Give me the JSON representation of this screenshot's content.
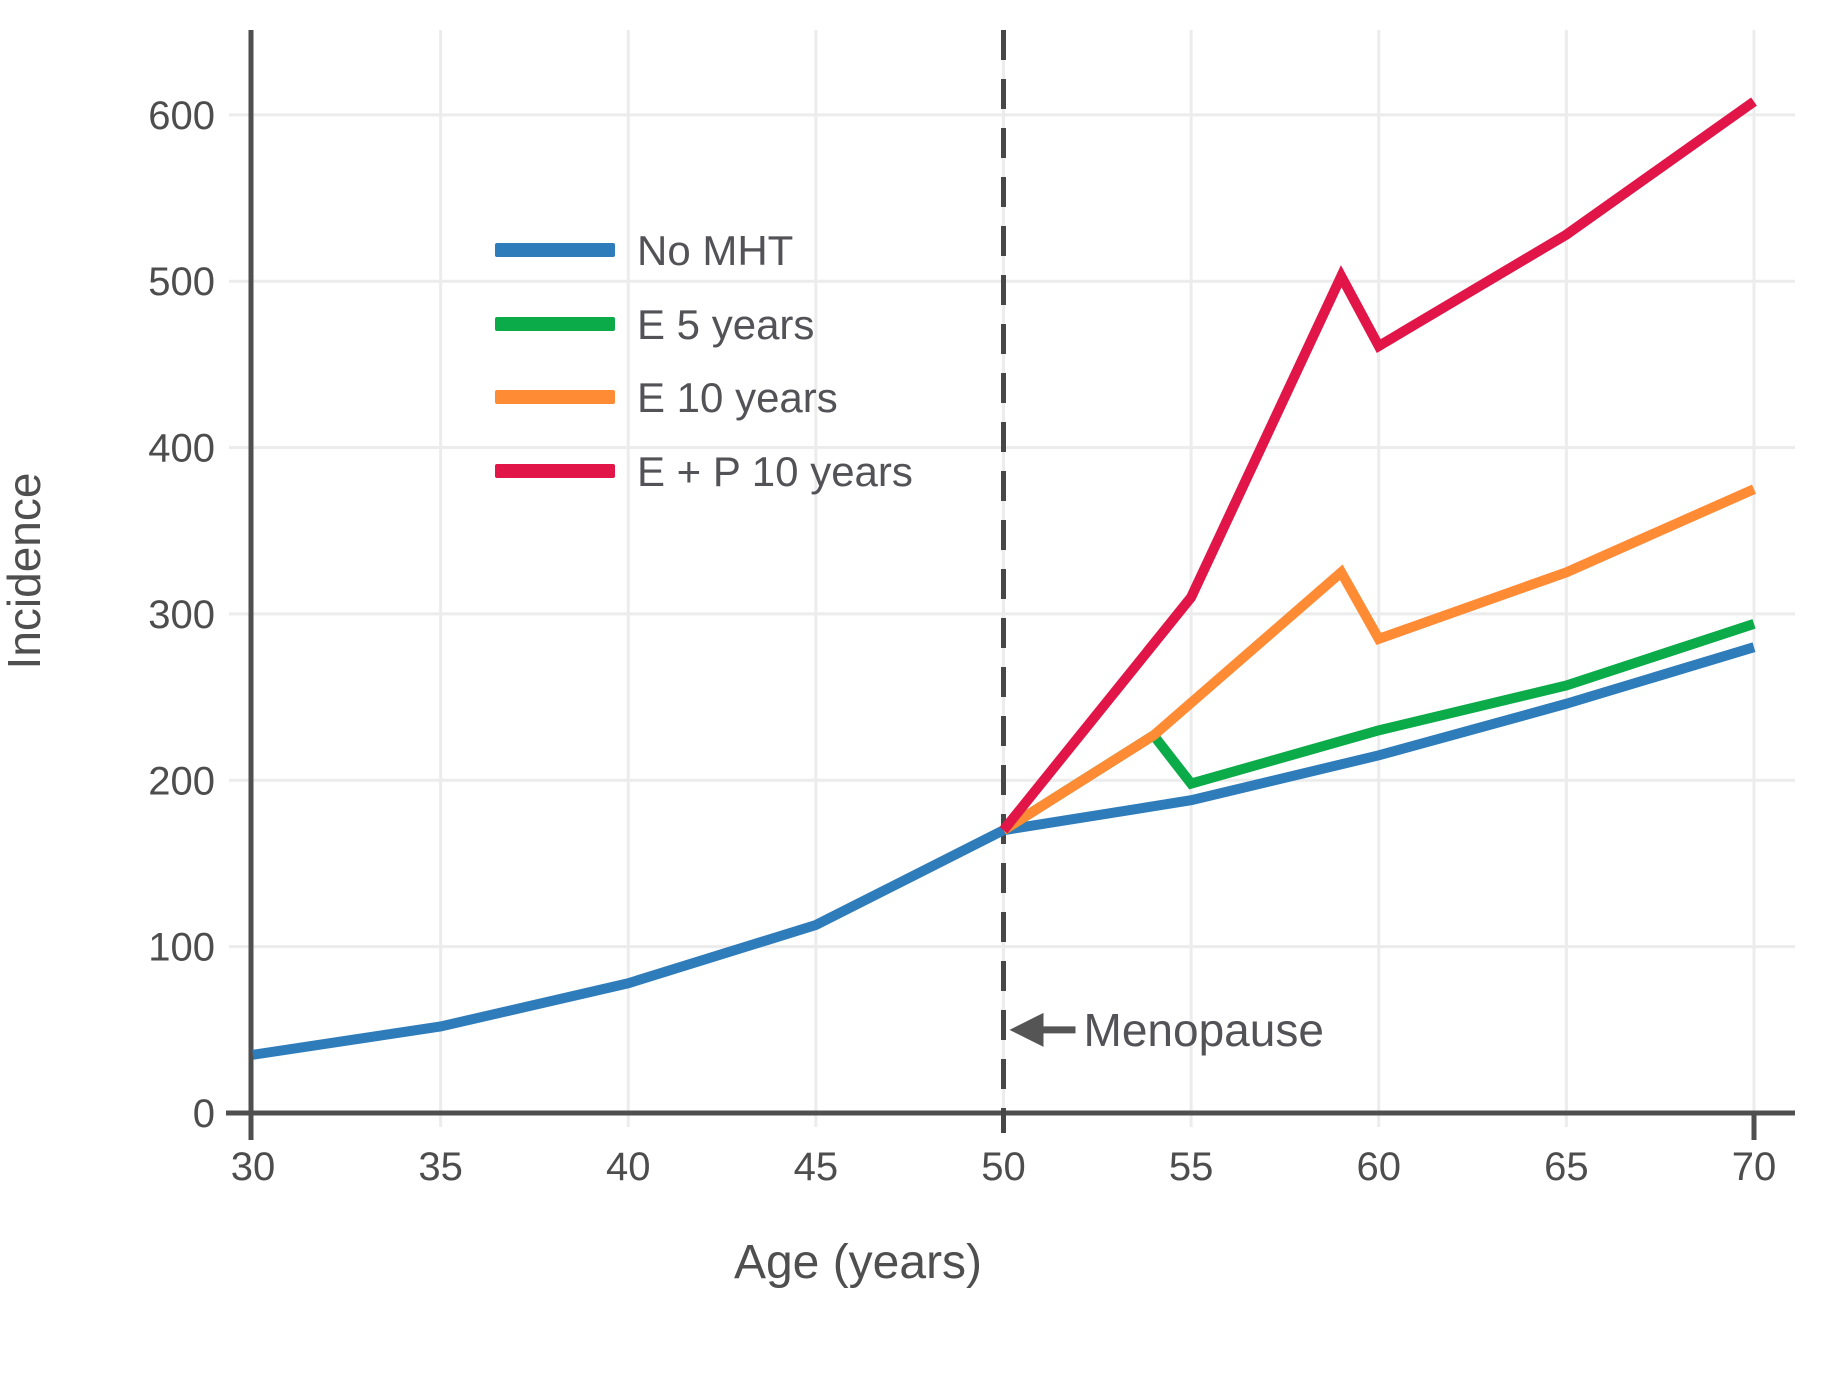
{
  "chart_data": {
    "type": "line",
    "title": "",
    "xlabel": "Age (years)",
    "ylabel": "Incidence",
    "xlim": [
      30,
      71.1
    ],
    "ylim": [
      0,
      651
    ],
    "xticks": [
      30,
      35,
      40,
      45,
      50,
      55,
      60,
      65,
      70
    ],
    "yticks": [
      0,
      100,
      200,
      300,
      400,
      500,
      600
    ],
    "grid": true,
    "legend_position": "upper-left-inside",
    "series": [
      {
        "name": "No MHT",
        "color": "#2e7cba",
        "points": [
          [
            30,
            35
          ],
          [
            35,
            52
          ],
          [
            40,
            78
          ],
          [
            45,
            113
          ],
          [
            50,
            170
          ],
          [
            55,
            188
          ],
          [
            60,
            215
          ],
          [
            65,
            246
          ],
          [
            70,
            280
          ]
        ]
      },
      {
        "name": "E 5 years",
        "color": "#0bab49",
        "points": [
          [
            50,
            170
          ],
          [
            54,
            227
          ],
          [
            55,
            198
          ],
          [
            60,
            230
          ],
          [
            65,
            257
          ],
          [
            70,
            294
          ]
        ]
      },
      {
        "name": "E 10 years",
        "color": "#ff8b35",
        "points": [
          [
            50,
            170
          ],
          [
            54,
            227
          ],
          [
            59,
            325
          ],
          [
            60,
            285
          ],
          [
            65,
            325
          ],
          [
            70,
            375
          ]
        ]
      },
      {
        "name": "E + P 10 years",
        "color": "#e11548",
        "points": [
          [
            50,
            170
          ],
          [
            55,
            310
          ],
          [
            59,
            503
          ],
          [
            60,
            461
          ],
          [
            65,
            528
          ],
          [
            70,
            608
          ]
        ]
      }
    ],
    "annotations": [
      {
        "text": "Menopause",
        "type": "vline-with-arrow",
        "x": 50,
        "arrow_y": 50,
        "direction": "left"
      }
    ],
    "colors": {
      "grid": "#ececec",
      "axis": "#4f4f4f",
      "tick_text": "#4d4d4d",
      "label_text": "#4f4f4f",
      "legend_text": "#525257",
      "annotation_text": "#525257",
      "dashed_line": "#474747",
      "arrow": "#555555",
      "background": "#ffffff"
    }
  }
}
